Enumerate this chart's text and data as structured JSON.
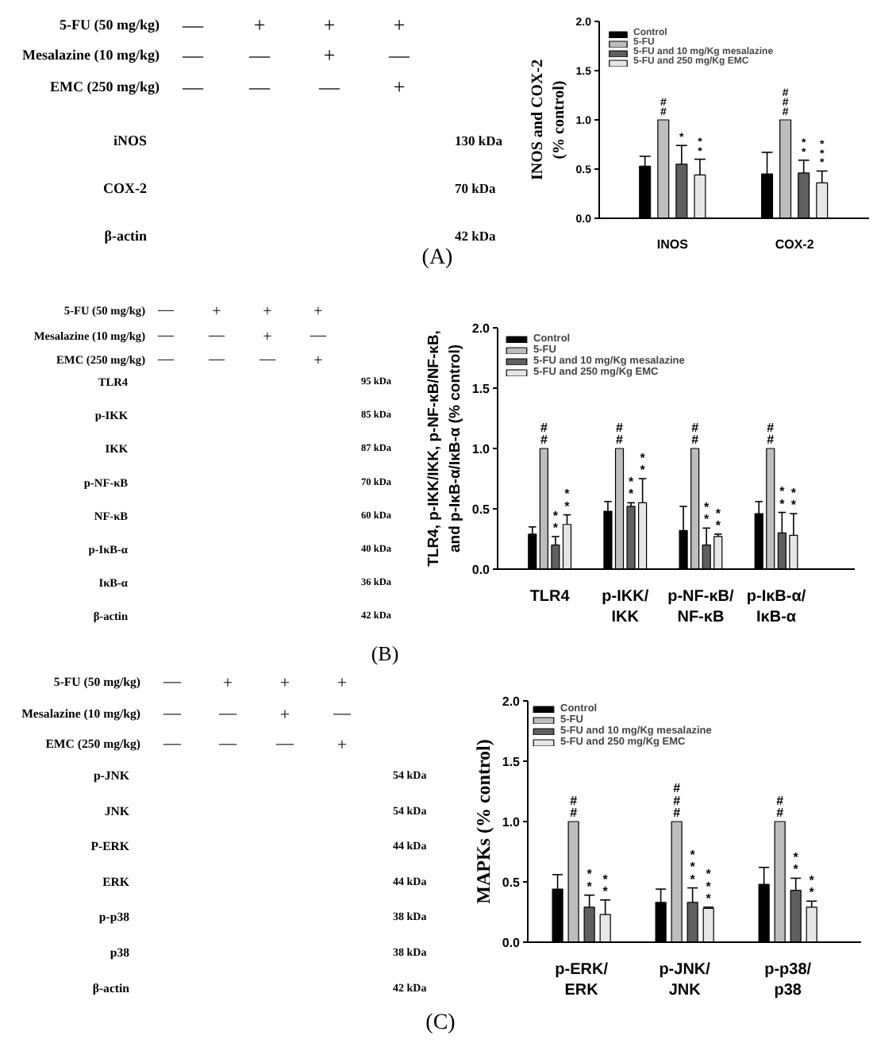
{
  "chart_data": [
    {
      "type": "other",
      "annotations": [
        "5-FU (50 mg/kg)",
        "—",
        "+",
        "+",
        "+",
        "Mesalazine (10 mg/kg)",
        "—",
        "—",
        "+",
        "—",
        "EMC (250 mg/kg)",
        "—",
        "—",
        "—",
        "+",
        "iNOS",
        "130 kDa",
        "COX-2",
        "70 kDa",
        "β-actin",
        "42 kDa",
        "(A)"
      ]
    },
    {
      "type": "bar",
      "ylabel": "INOS and COX-2\n(% control)",
      "categories": [
        "INOS",
        "COX-2"
      ],
      "series": [
        {
          "name": "Control",
          "color": "#000000",
          "values": [
            0.53,
            0.45
          ],
          "errors": [
            [
              0.53,
              0.63
            ],
            [
              0.45,
              0.67
            ]
          ]
        },
        {
          "name": "5-FU",
          "color": "#bdbdbd",
          "values": [
            1.0,
            1.0
          ],
          "value_labels": [
            "#\n#",
            "#\n#\n#"
          ]
        },
        {
          "name": "5-FU and 10 mg/Kg mesalazine",
          "color": "#5f5f5f",
          "values": [
            0.55,
            0.46
          ],
          "errors": [
            [
              0.55,
              0.74
            ],
            [
              0.46,
              0.59
            ]
          ],
          "value_labels": [
            "*",
            "*\n*"
          ]
        },
        {
          "name": "5-FU and 250 mg/Kg EMC",
          "color": "#e6e6e6",
          "values": [
            0.44,
            0.36
          ],
          "errors": [
            [
              0.44,
              0.6
            ],
            [
              0.36,
              0.48
            ]
          ],
          "value_labels": [
            "*\n*",
            "*\n*\n*"
          ]
        }
      ],
      "ylim": [
        0,
        2
      ],
      "yticks": [
        {
          "value": 0,
          "label": "0.0"
        },
        {
          "value": 0.5,
          "label": "0.5"
        },
        {
          "value": 1,
          "label": "1.0"
        },
        {
          "value": 1.5,
          "label": "1.5"
        },
        {
          "value": 2,
          "label": "2.0"
        }
      ],
      "legend": "top left"
    },
    {
      "type": "other",
      "annotations": [
        "5-FU (50 mg/kg)",
        "—",
        "+",
        "+",
        "+",
        "Mesalazine (10 mg/kg)",
        "—",
        "—",
        "+",
        "—",
        "EMC (250 mg/kg)",
        "—",
        "—",
        "—",
        "+",
        "TLR4",
        "95 kDa",
        "p-IKK",
        "85 kDa",
        "IKK",
        "87 kDa",
        "p-NF-κB",
        "70 kDa",
        "NF-κB",
        "60 kDa",
        "p-IκB-α",
        "40 kDa",
        "IκB-α",
        "36 kDa",
        "β-actin",
        "42 kDa",
        "(B)"
      ]
    },
    {
      "type": "bar",
      "ylabel": "TLR4, p-IKK/IKK, p-NF-κB/NF-κB,\nand p-IκB-α/IκB-α (% control)",
      "categories": [
        "TLR4",
        "p-IKK/\nIKK",
        "p-NF-κB/\nNF-κB",
        "p-IκB-α/\nIκB-α"
      ],
      "series": [
        {
          "name": "Control",
          "color": "#000000",
          "values": [
            0.29,
            0.48,
            0.32,
            0.46
          ],
          "errors": [
            [
              0.29,
              0.35
            ],
            [
              0.48,
              0.56
            ],
            [
              0.32,
              0.52
            ],
            [
              0.46,
              0.56
            ]
          ]
        },
        {
          "name": "5-FU",
          "color": "#bdbdbd",
          "values": [
            1.0,
            1.0,
            1.0,
            1.0
          ],
          "value_labels": [
            "#\n#",
            "#\n#",
            "#\n#",
            "#\n#"
          ]
        },
        {
          "name": "5-FU and 10 mg/Kg mesalazine",
          "color": "#5f5f5f",
          "values": [
            0.2,
            0.52,
            0.2,
            0.3
          ],
          "errors": [
            [
              0.2,
              0.27
            ],
            [
              0.52,
              0.55
            ],
            [
              0.2,
              0.34
            ],
            [
              0.3,
              0.47
            ]
          ],
          "value_labels": [
            "*\n*",
            "*\n*",
            "*\n*",
            "*\n*"
          ]
        },
        {
          "name": "5-FU and 250 mg/Kg EMC",
          "color": "#e6e6e6",
          "values": [
            0.37,
            0.55,
            0.27,
            0.28
          ],
          "errors": [
            [
              0.37,
              0.45
            ],
            [
              0.55,
              0.75
            ],
            [
              0.27,
              0.29
            ],
            [
              0.28,
              0.46
            ]
          ],
          "value_labels": [
            "*\n*",
            "*\n*",
            "*\n*",
            "*\n*"
          ]
        }
      ],
      "ylim": [
        0,
        2
      ],
      "yticks": [
        {
          "value": 0,
          "label": "0.0"
        },
        {
          "value": 0.5,
          "label": "0.5"
        },
        {
          "value": 1,
          "label": "1.0"
        },
        {
          "value": 1.5,
          "label": "1.5"
        },
        {
          "value": 2,
          "label": "2.0"
        }
      ],
      "legend": "top left"
    },
    {
      "type": "other",
      "annotations": [
        "5-FU (50 mg/kg)",
        "—",
        "+",
        "+",
        "+",
        "Mesalazine (10 mg/kg)",
        "—",
        "—",
        "+",
        "—",
        "EMC (250 mg/kg)",
        "—",
        "—",
        "—",
        "+",
        "p-JNK",
        "54 kDa",
        "JNK",
        "54 kDa",
        "P-ERK",
        "44 kDa",
        "ERK",
        "44 kDa",
        "p-p38",
        "38 kDa",
        "p38",
        "38 kDa",
        "β-actin",
        "42 kDa",
        "(C)"
      ]
    },
    {
      "type": "bar",
      "ylabel": "MAPKs (% control)",
      "categories": [
        "p-ERK/\nERK",
        "p-JNK/\nJNK",
        "p-p38/\np38"
      ],
      "series": [
        {
          "name": "Control",
          "color": "#000000",
          "values": [
            0.44,
            0.33,
            0.48
          ],
          "errors": [
            [
              0.44,
              0.56
            ],
            [
              0.33,
              0.44
            ],
            [
              0.48,
              0.62
            ]
          ]
        },
        {
          "name": "5-FU",
          "color": "#bdbdbd",
          "values": [
            1.0,
            1.0,
            1.0
          ],
          "value_labels": [
            "#\n#",
            "#\n#\n#",
            "#\n#"
          ]
        },
        {
          "name": "5-FU and 10 mg/Kg mesalazine",
          "color": "#5f5f5f",
          "values": [
            0.29,
            0.33,
            0.43
          ],
          "errors": [
            [
              0.29,
              0.39
            ],
            [
              0.33,
              0.45
            ],
            [
              0.43,
              0.53
            ]
          ],
          "value_labels": [
            "*\n*",
            "*\n*\n*",
            "*\n*"
          ]
        },
        {
          "name": "5-FU and 250 mg/Kg EMC",
          "color": "#e6e6e6",
          "values": [
            0.23,
            0.28,
            0.29
          ],
          "errors": [
            [
              0.23,
              0.35
            ],
            [
              0.28,
              0.29
            ],
            [
              0.29,
              0.34
            ]
          ],
          "value_labels": [
            "*\n*",
            "*\n*\n*",
            "*\n*"
          ]
        }
      ],
      "ylim": [
        0,
        2
      ],
      "yticks": [
        {
          "value": 0,
          "label": "0.0"
        },
        {
          "value": 0.5,
          "label": "0.5"
        },
        {
          "value": 1,
          "label": "1.0"
        },
        {
          "value": 1.5,
          "label": "1.5"
        },
        {
          "value": 2,
          "label": "2.0"
        }
      ],
      "legend": "top left"
    }
  ]
}
